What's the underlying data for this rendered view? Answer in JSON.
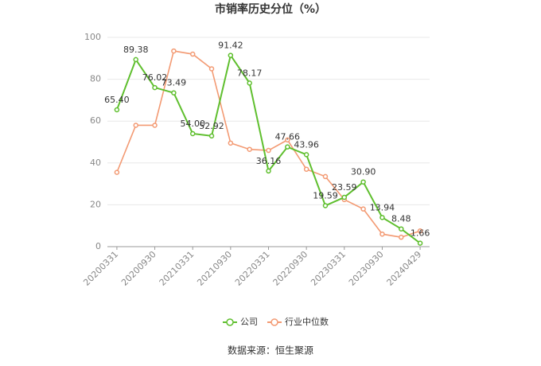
{
  "chart_data": {
    "type": "line",
    "title": "市销率历史分位（%）",
    "categories": [
      "20200331",
      null,
      "20200930",
      null,
      "20210331",
      null,
      "20210930",
      null,
      "20220331",
      null,
      "20220930",
      null,
      "20230331",
      null,
      "20230930",
      null,
      "20240429"
    ],
    "series": [
      {
        "name": "公司",
        "color": "#5fbf2e",
        "values": [
          65.4,
          89.38,
          76.02,
          73.49,
          54.0,
          52.92,
          91.42,
          78.17,
          36.16,
          47.66,
          43.96,
          19.59,
          23.59,
          30.9,
          13.94,
          8.48,
          1.66
        ],
        "value_labels": [
          "65.40",
          "89.38",
          "76.02",
          "73.49",
          "54.00",
          "52.92",
          "91.42",
          "78.17",
          "36.16",
          "47.66",
          "43.96",
          "19.59",
          "23.59",
          "30.90",
          "13.94",
          "8.48",
          "1.66"
        ]
      },
      {
        "name": "行业中位数",
        "color": "#f39a73",
        "values": [
          35.5,
          58,
          58,
          93.5,
          92,
          85,
          49.5,
          46.5,
          46,
          51,
          37,
          33.5,
          22.5,
          18,
          6,
          4.5,
          7.5
        ]
      }
    ],
    "ylim": [
      0,
      100
    ],
    "yticks": [
      0,
      20,
      40,
      60,
      80,
      100
    ],
    "grid": true,
    "source": "数据来源：恒生聚源"
  }
}
